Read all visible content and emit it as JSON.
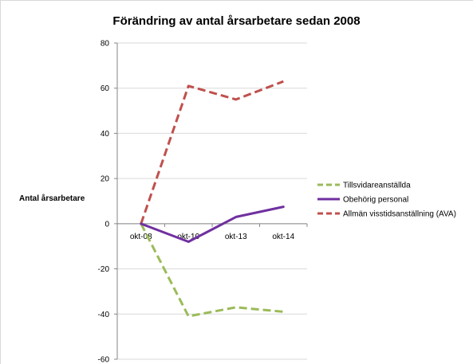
{
  "chart_data": {
    "type": "line",
    "title": "Förändring av antal årsarbetare sedan 2008",
    "ylabel": "Antal årsarbetare",
    "xlabel": "",
    "categories": [
      "okt-08",
      "okt-10",
      "okt-13",
      "okt-14"
    ],
    "ylim": [
      -60,
      80
    ],
    "yticks": [
      "80",
      "60",
      "40",
      "20",
      "0",
      "-20",
      "-40",
      "-60"
    ],
    "grid": true,
    "legend_position": "right",
    "series": [
      {
        "name": "Tillsvidareanställda",
        "values": [
          0,
          -41,
          -37,
          -39
        ],
        "color": "#9bbb59",
        "dash": "dashed"
      },
      {
        "name": "Obehörig personal",
        "values": [
          0,
          -8,
          3,
          7.5
        ],
        "color": "#7030a0",
        "dash": "solid"
      },
      {
        "name": "Allmän visstidsanställning (AVA)",
        "values": [
          0,
          61,
          55,
          63
        ],
        "color": "#c0504d",
        "dash": "dashed"
      }
    ]
  }
}
